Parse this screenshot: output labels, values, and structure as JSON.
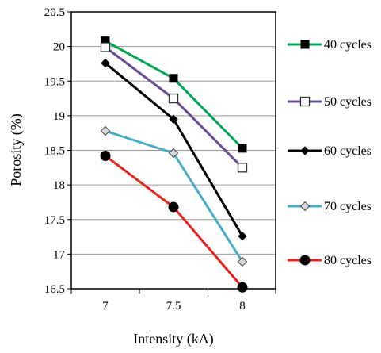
{
  "chart_data": {
    "type": "line",
    "title": "",
    "xlabel": "Intensity (kA)",
    "ylabel": "Porosity (%)",
    "categories": [
      "7",
      "7.5",
      "8"
    ],
    "x": [
      7,
      7.5,
      8
    ],
    "ylim": [
      16.5,
      20.5
    ],
    "y_ticks": [
      "16.5",
      "17",
      "17.5",
      "18",
      "18.5",
      "19",
      "19.5",
      "20",
      "20.5"
    ],
    "grid": "horizontal",
    "legend_position": "right",
    "series": [
      {
        "name": "40 cycles",
        "values": [
          20.08,
          19.54,
          18.53
        ],
        "color": "#00a651",
        "marker": "square-filled"
      },
      {
        "name": "50 cycles",
        "values": [
          19.99,
          19.25,
          18.25
        ],
        "color": "#6a4c93",
        "marker": "square-open"
      },
      {
        "name": "60 cycles",
        "values": [
          19.76,
          18.95,
          17.26
        ],
        "color": "#000000",
        "marker": "diamond-filled"
      },
      {
        "name": "70 cycles",
        "values": [
          18.78,
          18.46,
          16.89
        ],
        "color": "#4bacc6",
        "marker": "diamond-light"
      },
      {
        "name": "80 cycles",
        "values": [
          18.42,
          17.68,
          16.52
        ],
        "color": "#e8231e",
        "marker": "circle-filled"
      }
    ]
  }
}
